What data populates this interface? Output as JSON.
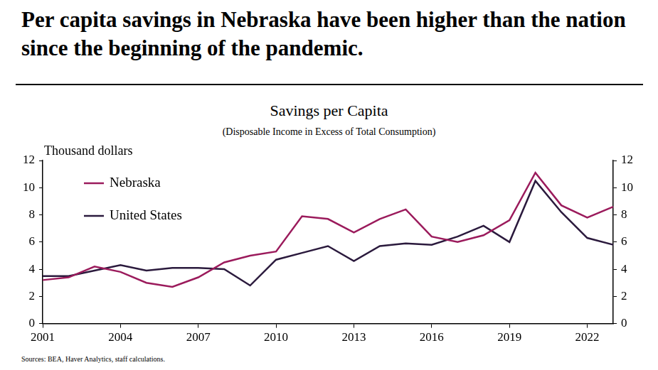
{
  "chart_data": {
    "type": "line",
    "headline": "Per capita savings in Nebraska have been higher than the nation since the beginning of the pandemic.",
    "title": "Savings per Capita",
    "subtitle": "(Disposable Income in Excess of Total Consumption)",
    "ylabel": "Thousand dollars",
    "source": "Sources: BEA, Haver Analytics, staff calculations.",
    "categories": [
      "2001",
      null,
      null,
      "2004",
      null,
      null,
      "2007",
      null,
      null,
      "2010",
      null,
      null,
      "2013",
      null,
      null,
      "2016",
      null,
      null,
      "2019",
      null,
      null,
      "2022",
      null
    ],
    "series": [
      {
        "name": "Nebraska",
        "color": "#9b1b5c",
        "values": [
          3.2,
          3.4,
          4.2,
          3.8,
          3.0,
          2.7,
          3.4,
          4.5,
          5.0,
          5.3,
          7.9,
          7.7,
          6.7,
          7.7,
          8.4,
          6.4,
          6.0,
          6.5,
          7.6,
          11.1,
          8.7,
          7.8,
          8.6
        ]
      },
      {
        "name": "United States",
        "color": "#2b1a3d",
        "values": [
          3.5,
          3.5,
          3.9,
          4.3,
          3.9,
          4.1,
          4.1,
          4.0,
          2.8,
          4.7,
          5.2,
          5.7,
          4.6,
          5.7,
          5.9,
          5.8,
          6.4,
          7.2,
          6.0,
          10.5,
          8.2,
          6.3,
          5.8
        ]
      }
    ],
    "ylim": [
      0,
      12
    ],
    "yticks": [
      0,
      2,
      4,
      6,
      8,
      10,
      12
    ],
    "y2lim": [
      0,
      12
    ],
    "y2ticks": [
      0,
      2,
      4,
      6,
      8,
      10,
      12
    ],
    "grid": false,
    "legend": "upper left"
  }
}
